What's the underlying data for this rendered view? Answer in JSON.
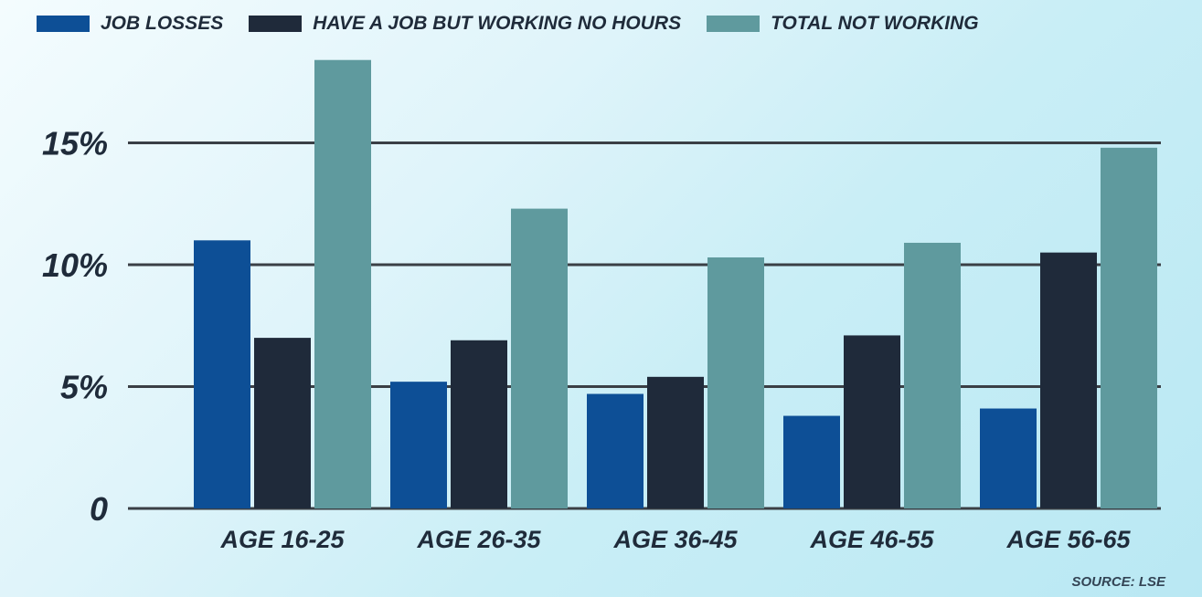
{
  "chart_data": {
    "type": "bar",
    "categories": [
      "AGE 16-25",
      "AGE 26-35",
      "AGE 36-45",
      "AGE 46-55",
      "AGE 56-65"
    ],
    "series": [
      {
        "name": "JOB LOSSES",
        "values": [
          11.0,
          5.2,
          4.7,
          3.8,
          4.1
        ],
        "color": "#0d4f96"
      },
      {
        "name": "HAVE A JOB BUT WORKING NO HOURS",
        "values": [
          7.0,
          6.9,
          5.4,
          7.1,
          10.5
        ],
        "color": "#1f2a3a"
      },
      {
        "name": "TOTAL NOT WORKING",
        "values": [
          18.4,
          12.3,
          10.3,
          10.9,
          14.8
        ],
        "color": "#5f9a9e"
      }
    ],
    "y_ticks": [
      {
        "value": 0,
        "label": "0"
      },
      {
        "value": 5,
        "label": "5%"
      },
      {
        "value": 10,
        "label": "10%"
      },
      {
        "value": 15,
        "label": "15%"
      }
    ],
    "ylim": [
      0,
      20
    ],
    "grid": true,
    "legend_position": "top",
    "source": "SOURCE: LSE"
  }
}
